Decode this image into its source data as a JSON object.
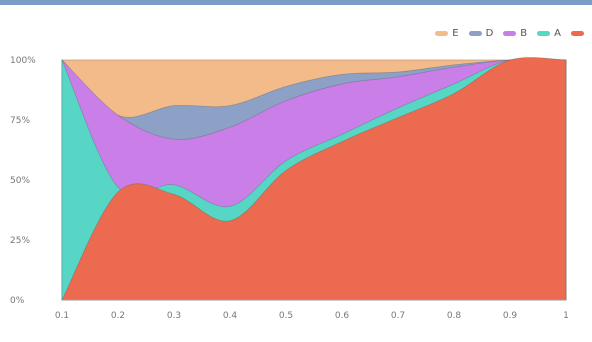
{
  "chart_data": {
    "type": "area",
    "stacked": true,
    "normalized": true,
    "xlabel": "",
    "ylabel": "",
    "x": [
      0.1,
      0.2,
      0.3,
      0.4,
      0.5,
      0.6,
      0.7,
      0.8,
      0.9,
      1
    ],
    "x_tick_labels": [
      "0.1",
      "0.2",
      "0.3",
      "0.4",
      "0.5",
      "0.6",
      "0.7",
      "0.8",
      "0.9",
      "1"
    ],
    "y_tick_labels": [
      "0%",
      "25%",
      "50%",
      "75%",
      "100%"
    ],
    "ylim": [
      0,
      100
    ],
    "grid": true,
    "legend_position": "top-right",
    "series": [
      {
        "key": "base",
        "name": "",
        "color": "#ec6a4f",
        "values": [
          0,
          45,
          44,
          33,
          54,
          66,
          76,
          86,
          100,
          100
        ]
      },
      {
        "key": "A",
        "name": "A",
        "color": "#57d6c5",
        "values": [
          100,
          2,
          4,
          6,
          4,
          3,
          4,
          4,
          0,
          0
        ]
      },
      {
        "key": "B",
        "name": "B",
        "color": "#c97ee8",
        "values": [
          0,
          30,
          19,
          33,
          25,
          21,
          13,
          7,
          0,
          0
        ]
      },
      {
        "key": "D",
        "name": "D",
        "color": "#8da0c5",
        "values": [
          0,
          0,
          14,
          9,
          6,
          4,
          2,
          1,
          0,
          0
        ]
      },
      {
        "key": "E",
        "name": "E",
        "color": "#f3ba8a",
        "values": [
          0,
          23,
          19,
          19,
          11,
          6,
          5,
          2,
          0,
          0
        ]
      }
    ]
  }
}
